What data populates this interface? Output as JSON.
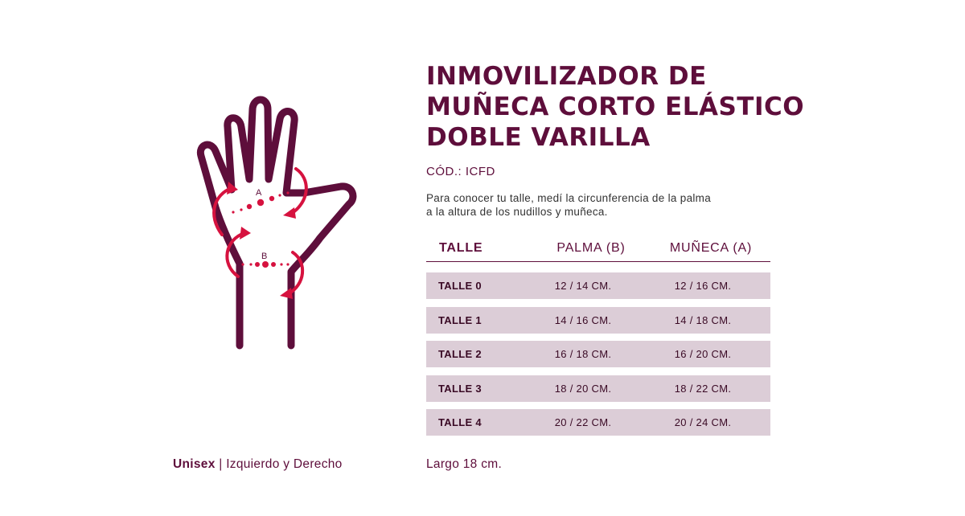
{
  "product": {
    "title_lines": [
      "INMOVILIZADOR DE",
      "MUÑECA CORTO ELÁSTICO",
      "DOBLE VARILLA"
    ],
    "code": "CÓD.: ICFD",
    "instructions_lines": [
      "Para conocer tu talle, medí la circunferencia de la palma",
      "a la altura de los nudillos y muñeca."
    ]
  },
  "illustration": {
    "icon": "hand-measurement-icon",
    "label_a": "A",
    "label_b": "B",
    "colors": {
      "outline": "#5e0e3b",
      "accent": "#d6123f"
    }
  },
  "table": {
    "headers": {
      "talle": "TALLE",
      "palma": "PALMA (B)",
      "muneca": "MUÑECA (A)"
    },
    "rows": [
      {
        "talle": "TALLE 0",
        "palma": "12 / 14 CM.",
        "muneca": "12 / 16 CM."
      },
      {
        "talle": "TALLE 1",
        "palma": "14 / 16 CM.",
        "muneca": "14 / 18 CM."
      },
      {
        "talle": "TALLE 2",
        "palma": "16 / 18 CM.",
        "muneca": "16 / 20 CM."
      },
      {
        "talle": "TALLE 3",
        "palma": "18 / 20 CM.",
        "muneca": "18 / 22 CM."
      },
      {
        "talle": "TALLE 4",
        "palma": "20 / 22 CM.",
        "muneca": "20 / 24 CM."
      }
    ]
  },
  "footer": {
    "unisex": "Unisex",
    "separator": " | ",
    "sides": "Izquierdo y Derecho",
    "length": "Largo 18 cm."
  },
  "colors": {
    "primary": "#5e0e3b",
    "accent": "#d6123f",
    "row_bg": "#dccdd7"
  }
}
